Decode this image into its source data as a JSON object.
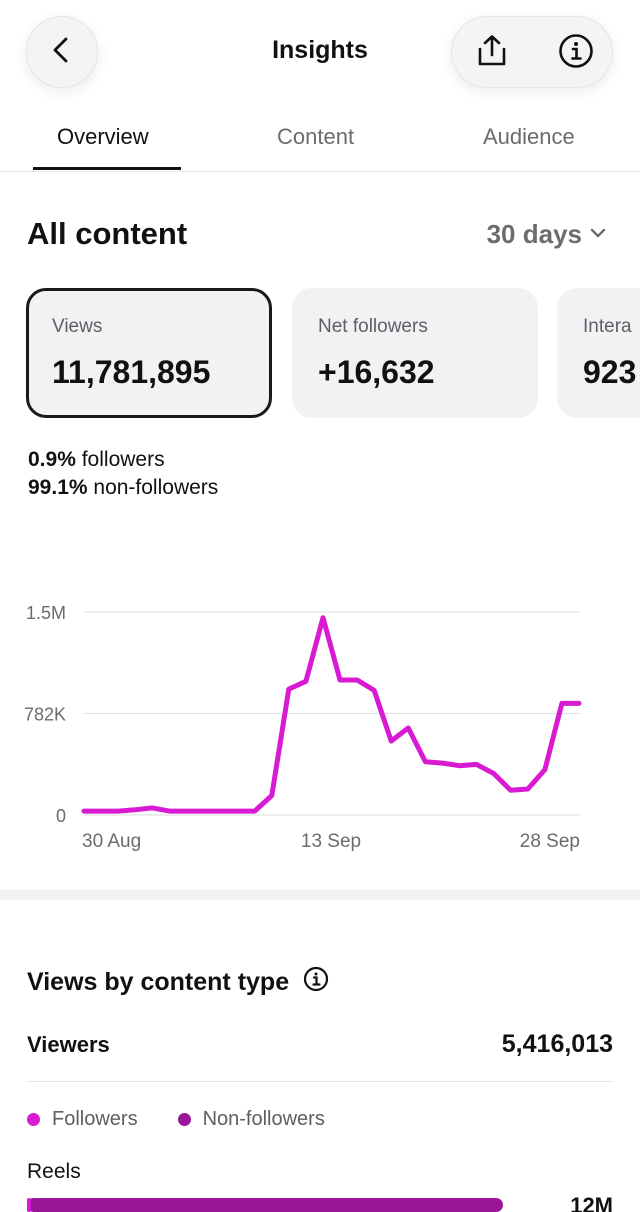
{
  "header": {
    "title": "Insights",
    "back_icon": "chevron-left-icon",
    "share_icon": "share-icon",
    "info_icon": "info-icon"
  },
  "tabs": [
    {
      "label": "Overview",
      "active": true
    },
    {
      "label": "Content",
      "active": false
    },
    {
      "label": "Audience",
      "active": false
    }
  ],
  "section": {
    "title": "All content",
    "range_label": "30 days"
  },
  "cards": [
    {
      "label": "Views",
      "value": "11,781,895",
      "selected": true
    },
    {
      "label": "Net followers",
      "value": "+16,632",
      "selected": false
    },
    {
      "label": "Intera",
      "value": "923",
      "selected": false
    }
  ],
  "breakdown": {
    "followers_pct": "0.9%",
    "followers_label": "followers",
    "nonfollowers_pct": "99.1%",
    "nonfollowers_label": "non-followers"
  },
  "chart_data": {
    "type": "line",
    "title": "",
    "xlabel": "",
    "ylabel": "",
    "x_tick_labels": [
      "30 Aug",
      "13 Sep",
      "28 Sep"
    ],
    "y_tick_labels": [
      "0",
      "782K",
      "1.5M"
    ],
    "ylim": [
      0,
      1564000
    ],
    "grid": true,
    "color": "#d81ad2",
    "x": [
      "30 Aug",
      "31 Aug",
      "1 Sep",
      "2 Sep",
      "3 Sep",
      "4 Sep",
      "5 Sep",
      "6 Sep",
      "7 Sep",
      "8 Sep",
      "9 Sep",
      "10 Sep",
      "11 Sep",
      "12 Sep",
      "13 Sep",
      "14 Sep",
      "15 Sep",
      "16 Sep",
      "17 Sep",
      "18 Sep",
      "19 Sep",
      "20 Sep",
      "21 Sep",
      "22 Sep",
      "23 Sep",
      "24 Sep",
      "25 Sep",
      "26 Sep",
      "27 Sep",
      "28 Sep"
    ],
    "values": [
      30000,
      30000,
      30000,
      40000,
      55000,
      30000,
      30000,
      30000,
      30000,
      30000,
      30000,
      150000,
      970000,
      1030000,
      1520000,
      1040000,
      1040000,
      960000,
      570000,
      670000,
      410000,
      400000,
      380000,
      390000,
      320000,
      190000,
      200000,
      350000,
      860000,
      860000
    ]
  },
  "content_type": {
    "title": "Views by content type",
    "info_icon": "info-icon",
    "viewers_label": "Viewers",
    "viewers_value": "5,416,013",
    "legend": [
      {
        "label": "Followers",
        "color": "#d81ad2"
      },
      {
        "label": "Non-followers",
        "color": "#9b1597"
      }
    ],
    "rows": [
      {
        "label": "Reels",
        "value": "12M",
        "fraction": 0.88
      }
    ]
  }
}
